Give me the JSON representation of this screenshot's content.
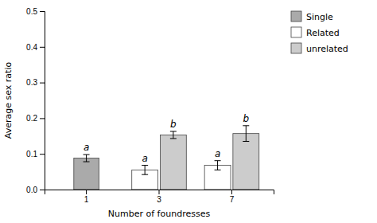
{
  "chart_data": {
    "type": "bar",
    "xlabel": "Number of foundresses",
    "ylabel": "Average sex ratio",
    "categories": [
      "1",
      "3",
      "7"
    ],
    "series": [
      {
        "name": "Single",
        "color": "#aaaaaa",
        "values": [
          0.088,
          null,
          null
        ],
        "errors": [
          0.01,
          null,
          null
        ],
        "sig_letters": [
          "a",
          null,
          null
        ]
      },
      {
        "name": "Related",
        "color": "#ffffff",
        "values": [
          null,
          0.055,
          0.068
        ],
        "errors": [
          null,
          0.013,
          0.013
        ],
        "sig_letters": [
          null,
          "a",
          "a"
        ]
      },
      {
        "name": "unrelated",
        "color": "#cccccc",
        "values": [
          null,
          0.153,
          0.157
        ],
        "errors": [
          null,
          0.01,
          0.022
        ],
        "sig_letters": [
          null,
          "b",
          "b"
        ]
      }
    ],
    "ylim": [
      0,
      0.5
    ],
    "yticks": [
      {
        "value": 0,
        "label": "0.0"
      },
      0.1,
      0.2,
      0.3,
      0.4,
      0.5
    ],
    "grid": false,
    "legend": "right"
  }
}
